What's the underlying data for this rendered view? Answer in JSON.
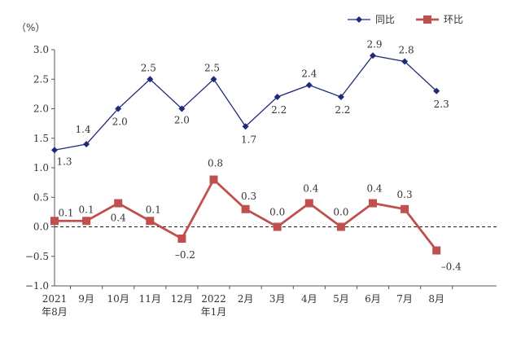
{
  "chart_data": {
    "type": "line",
    "unit_label": "（%）",
    "categories": [
      [
        "2021",
        "年8月"
      ],
      [
        "9月"
      ],
      [
        "10月"
      ],
      [
        "11月"
      ],
      [
        "12月"
      ],
      [
        "2022",
        "年1月"
      ],
      [
        "2月"
      ],
      [
        "3月"
      ],
      [
        "4月"
      ],
      [
        "5月"
      ],
      [
        "6月"
      ],
      [
        "7月"
      ],
      [
        "8月"
      ]
    ],
    "series": [
      {
        "name": "同比",
        "color": "#1f2a7a",
        "marker": "diamond",
        "values": [
          1.3,
          1.4,
          2.0,
          2.5,
          2.0,
          2.5,
          1.7,
          2.2,
          2.4,
          2.2,
          2.9,
          2.8,
          2.3
        ],
        "labels": [
          "1.3",
          "1.4",
          "2.0",
          "2.5",
          "2.0",
          "2.5",
          "1.7",
          "2.2",
          "2.4",
          "2.2",
          "2.9",
          "2.8",
          "2.3"
        ]
      },
      {
        "name": "环比",
        "color": "#c0504d",
        "marker": "square",
        "values": [
          0.1,
          0.1,
          0.4,
          0.1,
          -0.2,
          0.8,
          0.3,
          0.0,
          0.4,
          0.0,
          0.4,
          0.3,
          -0.4
        ],
        "labels": [
          "0.1",
          "0.1",
          "0.4",
          "0.1",
          "–0.2",
          "0.8",
          "0.3",
          "0.0",
          "0.4",
          "0.0",
          "0.4",
          "0.3",
          "–0.4"
        ]
      }
    ],
    "ylim": [
      -1.0,
      3.0
    ],
    "yticks": [
      -1.0,
      -0.5,
      0.0,
      0.5,
      1.0,
      1.5,
      2.0,
      2.5,
      3.0
    ],
    "ytick_labels": [
      "−1.0",
      "−0.5",
      "0.0",
      "0.5",
      "1.0",
      "1.5",
      "2.0",
      "2.5",
      "3.0"
    ],
    "zero_reference_line": "dashed",
    "grid": false,
    "legend_position": "top-right"
  }
}
